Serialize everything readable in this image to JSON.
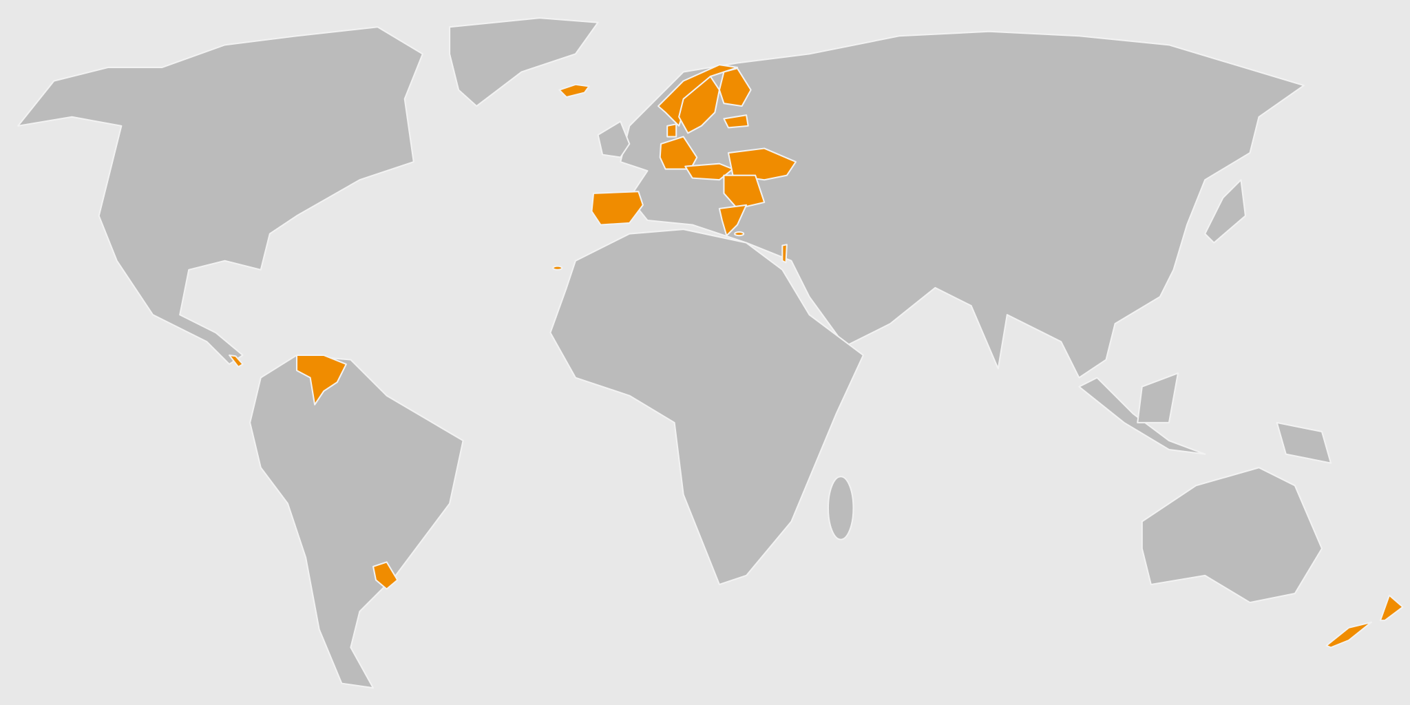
{
  "map": {
    "type": "choropleth world map",
    "colors": {
      "background": "#e8e8e8",
      "land": "#bbbbbb",
      "border": "#f2f2f2",
      "highlight": "#f08c00"
    }
  }
}
